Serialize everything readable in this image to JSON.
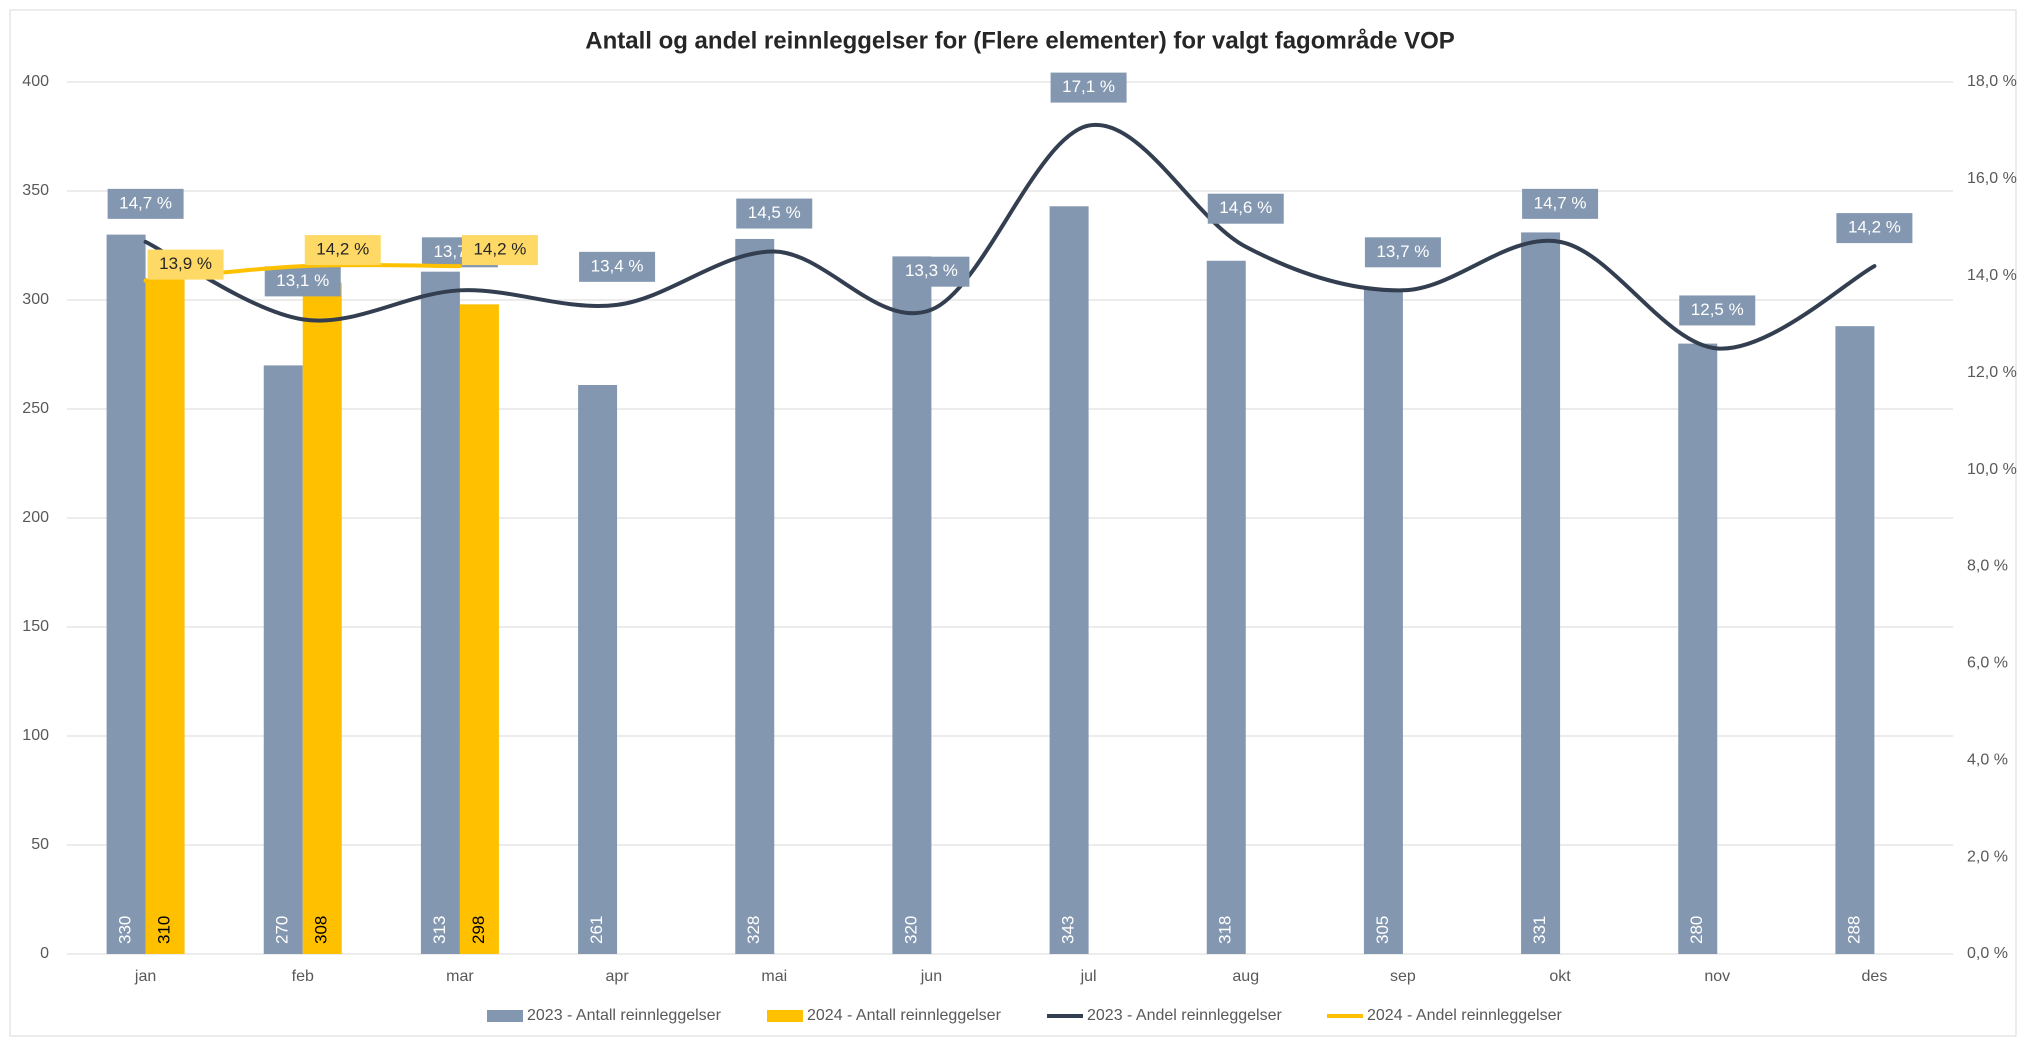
{
  "chart_data": {
    "type": "bar",
    "title": "Antall og andel reinnleggelser for (Flere elementer)  for valgt fagområde VOP",
    "categories": [
      "jan",
      "feb",
      "mar",
      "apr",
      "mai",
      "jun",
      "jul",
      "aug",
      "sep",
      "okt",
      "nov",
      "des"
    ],
    "series": [
      {
        "name": "2023 - Antall reinnleggelser",
        "type": "bar",
        "color": "#8497b0",
        "values": [
          330,
          270,
          313,
          261,
          328,
          320,
          343,
          318,
          305,
          331,
          280,
          288
        ]
      },
      {
        "name": "2024 - Antall reinnleggelser",
        "type": "bar",
        "color": "#ffc000",
        "values": [
          310,
          308,
          298,
          null,
          null,
          null,
          null,
          null,
          null,
          null,
          null,
          null
        ]
      },
      {
        "name": "2023 - Andel reinnleggelser",
        "type": "line",
        "axis": "y2",
        "color": "#333f50",
        "values": [
          14.7,
          13.1,
          13.7,
          13.4,
          14.5,
          13.3,
          17.1,
          14.6,
          13.7,
          14.7,
          12.5,
          14.2
        ],
        "value_labels": [
          "14,7 %",
          "13,1 %",
          "13,7 %",
          "13,4 %",
          "14,5 %",
          "13,3 %",
          "17,1 %",
          "14,6 %",
          "13,7 %",
          "14,7 %",
          "12,5 %",
          "14,2 %"
        ]
      },
      {
        "name": "2024 - Andel reinnleggelser",
        "type": "line",
        "axis": "y2",
        "color": "#ffc000",
        "values": [
          13.9,
          14.2,
          14.2,
          null,
          null,
          null,
          null,
          null,
          null,
          null,
          null,
          null
        ],
        "value_labels": [
          "13,9 %",
          "14,2 %",
          "14,2 %",
          null,
          null,
          null,
          null,
          null,
          null,
          null,
          null,
          null
        ]
      }
    ],
    "ylim": [
      0,
      400
    ],
    "yticks": [
      0,
      50,
      100,
      150,
      200,
      250,
      300,
      350,
      400
    ],
    "y2lim": [
      0,
      18
    ],
    "y2ticks": [
      {
        "value": 0,
        "label": "0,0 %"
      },
      {
        "value": 2,
        "label": "2,0 %"
      },
      {
        "value": 4,
        "label": "4,0 %"
      },
      {
        "value": 6,
        "label": "6,0 %"
      },
      {
        "value": 8,
        "label": "8,0 %"
      },
      {
        "value": 10,
        "label": "10,0 %"
      },
      {
        "value": 12,
        "label": "12,0 %"
      },
      {
        "value": 14,
        "label": "14,0 %"
      },
      {
        "value": 16,
        "label": "16,0 %"
      },
      {
        "value": 18,
        "label": "18,0 %"
      }
    ],
    "grid": true,
    "legend": "bottom"
  }
}
